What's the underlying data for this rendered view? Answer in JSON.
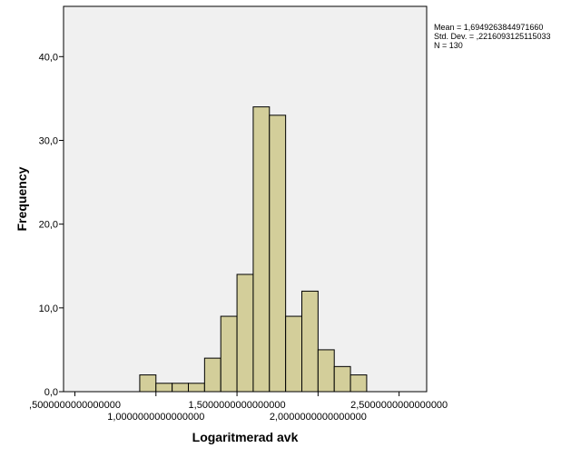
{
  "chart_data": {
    "type": "bar",
    "subtype": "histogram",
    "xlabel": "Logaritmerad avk",
    "ylabel": "Frequency",
    "xlim": [
      0.43,
      2.67
    ],
    "ylim": [
      0,
      46
    ],
    "bin_width": 0.1,
    "bins": [
      {
        "x_start": 0.9,
        "x_end": 1.0,
        "count": 2
      },
      {
        "x_start": 1.0,
        "x_end": 1.1,
        "count": 1
      },
      {
        "x_start": 1.1,
        "x_end": 1.2,
        "count": 1
      },
      {
        "x_start": 1.2,
        "x_end": 1.3,
        "count": 1
      },
      {
        "x_start": 1.3,
        "x_end": 1.4,
        "count": 4
      },
      {
        "x_start": 1.4,
        "x_end": 1.5,
        "count": 9
      },
      {
        "x_start": 1.5,
        "x_end": 1.6,
        "count": 14
      },
      {
        "x_start": 1.6,
        "x_end": 1.7,
        "count": 34
      },
      {
        "x_start": 1.7,
        "x_end": 1.8,
        "count": 33
      },
      {
        "x_start": 1.8,
        "x_end": 1.9,
        "count": 9
      },
      {
        "x_start": 1.9,
        "x_end": 2.0,
        "count": 12
      },
      {
        "x_start": 2.0,
        "x_end": 2.1,
        "count": 5
      },
      {
        "x_start": 2.1,
        "x_end": 2.2,
        "count": 3
      },
      {
        "x_start": 2.2,
        "x_end": 2.3,
        "count": 2
      }
    ],
    "x_ticks": [
      {
        "value": 0.5,
        "label": ",5000000000000000"
      },
      {
        "value": 1.0,
        "label": "1,0000000000000000"
      },
      {
        "value": 1.5,
        "label": "1,5000000000000000"
      },
      {
        "value": 2.0,
        "label": "2,0000000000000000"
      },
      {
        "value": 2.5,
        "label": "2,5000000000000000"
      }
    ],
    "y_ticks": [
      {
        "value": 0,
        "label": "0,0"
      },
      {
        "value": 10,
        "label": "10,0"
      },
      {
        "value": 20,
        "label": "20,0"
      },
      {
        "value": 30,
        "label": "30,0"
      },
      {
        "value": 40,
        "label": "40,0"
      }
    ],
    "stats": {
      "mean": "Mean = 1,6949263844971660",
      "std_dev": "Std. Dev. = ,2216093125115033",
      "n": "N = 130"
    },
    "grid": false,
    "colors": {
      "bar_fill": "#d3ce9a",
      "bar_stroke": "#000000",
      "plot_background": "#f0f0f0",
      "page_background": "#ffffff"
    }
  }
}
